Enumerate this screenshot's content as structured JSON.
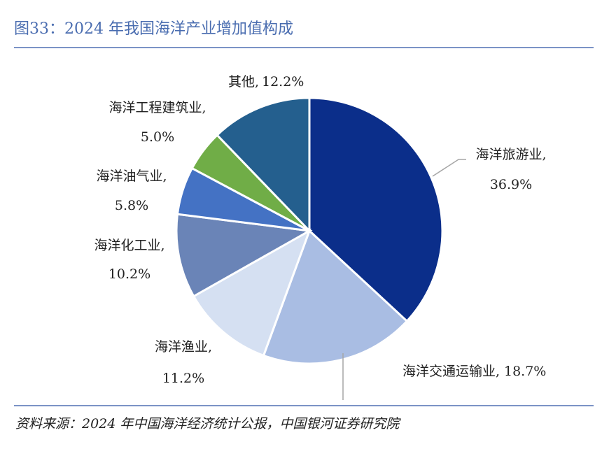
{
  "chart_data": {
    "type": "pie",
    "title": "图33：2024 年我国海洋产业增加值构成",
    "source": "资料来源：2024 年中国海洋经济统计公报，中国银河证券研究院",
    "categories": [
      "海洋旅游业,",
      "海洋交通运输业,",
      "海洋渔业,",
      "海洋化工业,",
      "海洋油气业,",
      "海洋工程建筑业,",
      "其他,"
    ],
    "values": [
      36.9,
      18.7,
      11.2,
      10.2,
      5.8,
      5.0,
      12.2
    ],
    "value_labels": [
      "36.9%",
      "18.7%",
      "11.2%",
      "10.2%",
      "5.8%",
      "5.0%",
      "12.2%"
    ],
    "colors": [
      "#0b2e8a",
      "#a9bde3",
      "#d5e0f2",
      "#6a84b7",
      "#4472c4",
      "#70ad47",
      "#245f8e"
    ]
  }
}
